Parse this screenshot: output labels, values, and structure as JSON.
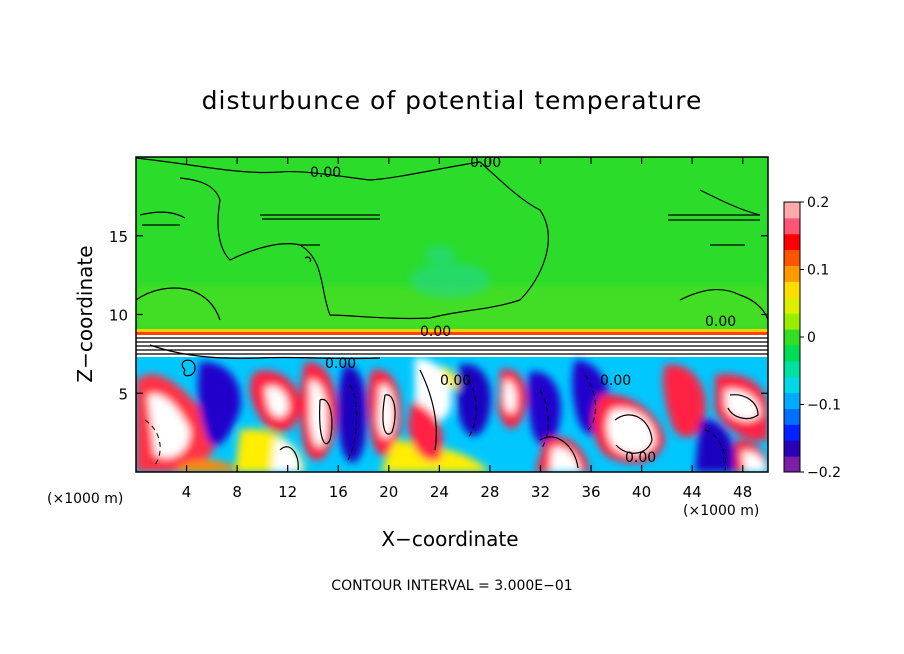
{
  "chart_data": {
    "type": "heatmap",
    "title": "disturbunce of potential temperature",
    "xlabel": "X−coordinate",
    "ylabel": "Z−coordinate",
    "x_unit_left": "(×1000 m)",
    "x_unit_right": "(×1000 m)",
    "footer": "CONTOUR INTERVAL = 3.000E−01",
    "xlim": [
      0,
      50
    ],
    "ylim": [
      0,
      20
    ],
    "x_ticks": [
      4,
      8,
      12,
      16,
      20,
      24,
      28,
      32,
      36,
      40,
      44,
      48
    ],
    "y_ticks": [
      5,
      10,
      15
    ],
    "colorbar": {
      "range": [
        -0.2,
        0.2
      ],
      "tick_values": [
        0.2,
        0.1,
        0,
        -0.1,
        -0.2
      ],
      "tick_labels": [
        "0.2",
        "0.1",
        "0",
        "−0.1",
        "−0.2"
      ],
      "colors": [
        "#7a1fa8",
        "#2a00b4",
        "#0022ff",
        "#0070ff",
        "#00aaff",
        "#00d8e8",
        "#00e0a0",
        "#00dd55",
        "#33dd22",
        "#99ee00",
        "#ddee00",
        "#ffdd00",
        "#ff9900",
        "#ff5500",
        "#ff0000",
        "#ff5577",
        "#ffaaaa"
      ]
    },
    "contour_labels": [
      "0.00",
      "0.00",
      "0.00",
      "0.00",
      "0.00",
      "0.00",
      "0.00",
      "0.00"
    ]
  }
}
